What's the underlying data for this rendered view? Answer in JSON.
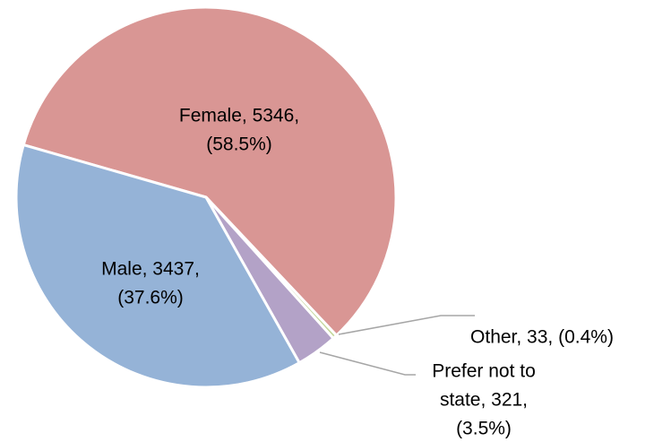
{
  "chart_data": {
    "type": "pie",
    "values": [
      5346,
      33,
      321,
      3437
    ],
    "value_labels": [
      [
        "Female, 5346,",
        "(58.5%)"
      ],
      [
        "Other, 33, (0.4%)"
      ],
      [
        "Prefer not to",
        "state, 321,",
        "(3.5%)"
      ],
      [
        "Male, 3437,",
        "(37.6%)"
      ]
    ],
    "colors": [
      "#d99694",
      "#c3d69b",
      "#b3a2c7",
      "#95b3d7"
    ]
  }
}
